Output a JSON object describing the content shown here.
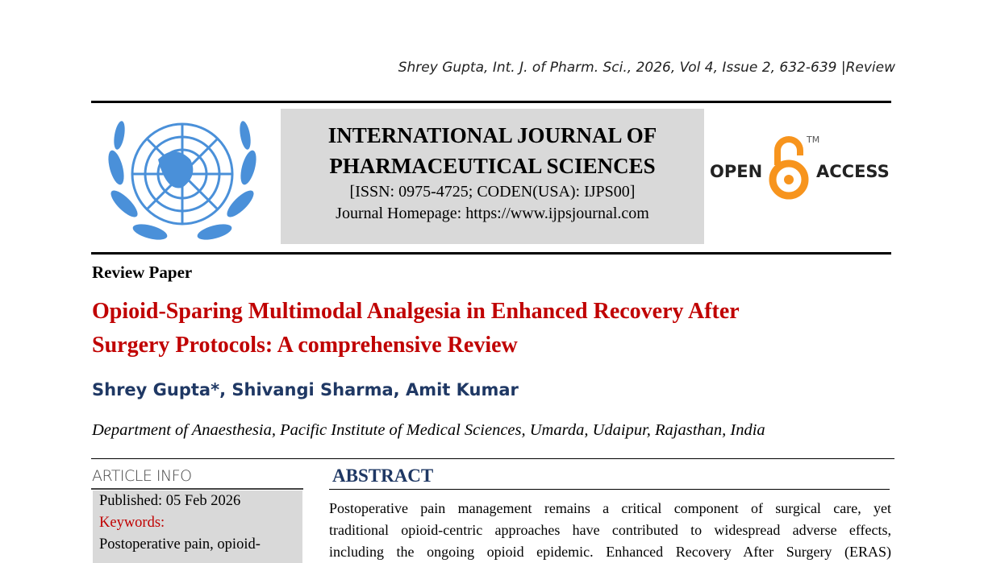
{
  "running_header": "Shrey Gupta, Int. J. of Pharm. Sci., 2026, Vol 4, Issue 2, 632-639 |Review",
  "journal": {
    "title_line1": "INTERNATIONAL JOURNAL OF",
    "title_line2": "PHARMACEUTICAL SCIENCES",
    "issn": "[ISSN: 0975-4725; CODEN(USA): IJPS00]",
    "homepage": "Journal Homepage: https://www.ijpsjournal.com"
  },
  "open_access": {
    "open": "OPEN",
    "access": "ACCESS",
    "tm": "TM",
    "color": "#f7941d"
  },
  "paper_type": "Review Paper",
  "title_line1": "Opioid-Sparing Multimodal Analgesia in Enhanced Recovery After",
  "title_line2": "Surgery Protocols: A comprehensive Review",
  "authors": "Shrey Gupta*, Shivangi Sharma, Amit Kumar",
  "affiliation": "Department of Anaesthesia, Pacific Institute of Medical Sciences, Umarda, Udaipur, Rajasthan, India",
  "article_info": {
    "heading": "ARTICLE INFO",
    "published": "Published:  05 Feb 2026",
    "keywords_label": "Keywords:",
    "keywords": "Postoperative pain, opioid-"
  },
  "abstract": {
    "heading": "ABSTRACT",
    "lines": [
      "Postoperative pain management remains a critical component of surgical care, yet",
      "traditional opioid-centric approaches have contributed to widespread adverse effects,",
      "including the ongoing opioid epidemic. Enhanced Recovery After Surgery (ERAS)"
    ]
  }
}
